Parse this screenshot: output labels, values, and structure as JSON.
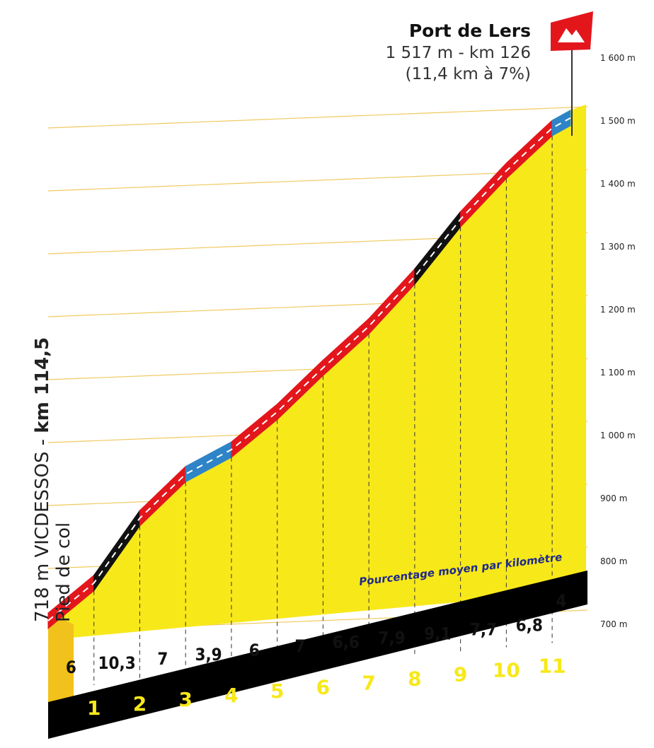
{
  "chart_data": {
    "type": "area",
    "title": "Port de Lers",
    "summit": {
      "name": "Port de Lers",
      "line1": "1 517 m - km 126",
      "line2": "(11,4 km à 7%)"
    },
    "start_label": {
      "prefix": "718 m VICDESSOS - ",
      "km": "km 114,5",
      "line2": "Pied de col"
    },
    "note": "Pourcentage moyen par kilomètre",
    "y_ticks": [
      "700 m",
      "800 m",
      "900 m",
      "1 000  m",
      "1 100 m",
      "1 200 m",
      "1 300 m",
      "1 400 m",
      "1 500 m",
      "1 600 m"
    ],
    "y_tick_values": [
      700,
      800,
      900,
      1000,
      1100,
      1200,
      1300,
      1400,
      1500,
      1600
    ],
    "ylim": [
      650,
      1600
    ],
    "km_markers": [
      "1",
      "2",
      "3",
      "4",
      "5",
      "6",
      "7",
      "8",
      "9",
      "10",
      "11"
    ],
    "segment_percentages": [
      "6",
      "10,3",
      "7",
      "3,9",
      "6",
      "7",
      "6,6",
      "7,9",
      "9,1",
      "7,7",
      "6,8",
      "4"
    ],
    "x": [
      0,
      1,
      2,
      3,
      4,
      5,
      6,
      7,
      8,
      9,
      10,
      11,
      11.4
    ],
    "altitudes": [
      718,
      778,
      881,
      951,
      990,
      1050,
      1120,
      1186,
      1265,
      1356,
      1433,
      1501,
      1517
    ],
    "segment_colors": [
      "red",
      "black",
      "red",
      "blue",
      "red",
      "red",
      "red",
      "red",
      "black",
      "red",
      "red",
      "blue"
    ],
    "colors": {
      "yellow": "#f7e81a",
      "red": "#e3161c",
      "black": "#111111",
      "blue": "#2e84c6",
      "flag": "#e3161c"
    }
  }
}
